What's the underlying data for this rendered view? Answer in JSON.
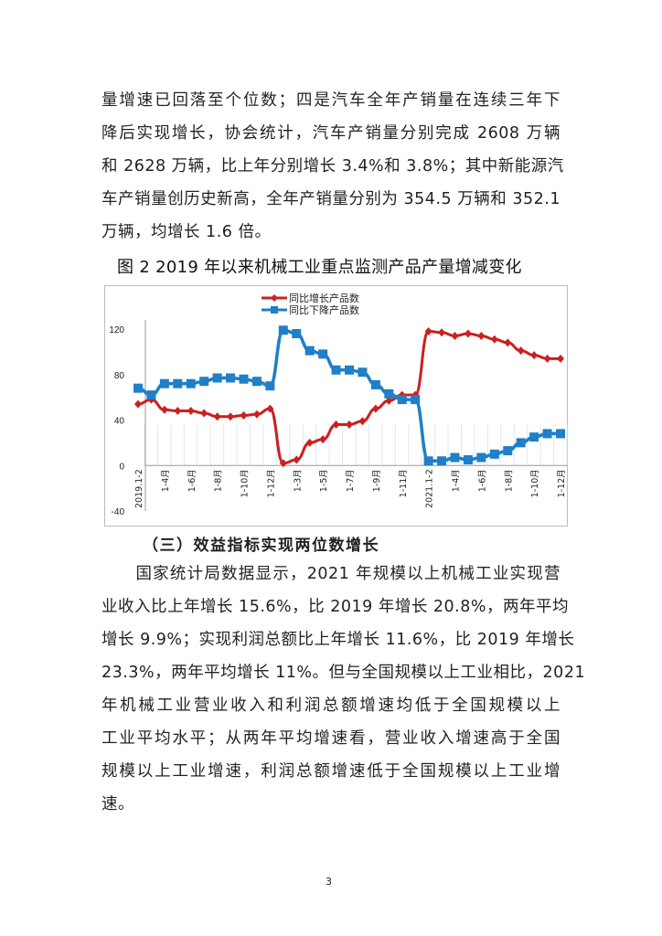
{
  "paragraph1": [
    "量增速已回落至个位数；四是汽车全年产销量在连续三年下",
    "降后实现增长，协会统计，汽车产销量分别完成 2608 万辆",
    "和 2628 万辆，比上年分别增长 3.4%和 3.8%；其中新能源汽",
    "车产销量创历史新高，全年产销量分别为 354.5 万辆和 352.1",
    "万辆，均增长 1.6 倍。"
  ],
  "figure_caption": "图 2   2019 年以来机械工业重点监测产品产量增减变化",
  "chart_data": {
    "type": "line",
    "title": "",
    "xlabel": "",
    "ylabel": "",
    "ylim": [
      -40,
      120
    ],
    "yticks": [
      "-40",
      "0",
      "40",
      "80",
      "120"
    ],
    "grid": false,
    "legend_position": "top-center",
    "x_labels": [
      "2019.1-2",
      "",
      "1-4月",
      "",
      "1-6月",
      "",
      "1-8月",
      "",
      "1-10月",
      "",
      "1-12月",
      "",
      "1-3月",
      "",
      "1-5月",
      "",
      "1-7月",
      "",
      "1-9月",
      "",
      "1-11月",
      "",
      "2021.1-2",
      "",
      "1-4月",
      "",
      "1-6月",
      "",
      "1-8月",
      "",
      "1-10月",
      "",
      "1-12月"
    ],
    "series": [
      {
        "name": "同比增长产品数",
        "color": "#cc1f1f",
        "marker": "diamond",
        "values": [
          54,
          58,
          49,
          48,
          48,
          46,
          43,
          43,
          44,
          45,
          50,
          2,
          5,
          20,
          23,
          36,
          36,
          39,
          50,
          57,
          62,
          62,
          118,
          117,
          114,
          116,
          114,
          111,
          108,
          101,
          97,
          94,
          94
        ]
      },
      {
        "name": "同比下降产品数",
        "color": "#1f7fc8",
        "marker": "square",
        "values": [
          68,
          62,
          72,
          72,
          72,
          74,
          77,
          77,
          76,
          74,
          70,
          119,
          116,
          101,
          98,
          84,
          84,
          82,
          71,
          63,
          58,
          58,
          4,
          4,
          7,
          5,
          7,
          10,
          13,
          20,
          25,
          28,
          28
        ]
      }
    ]
  },
  "section_heading": "（三）效益指标实现两位数增长",
  "paragraph2": [
    "　　国家统计局数据显示，2021 年规模以上机械工业实现营",
    "业收入比上年增长 15.6%，比 2019 年增长 20.8%，两年平均",
    "增长 9.9%；实现利润总额比上年增长 11.6%，比 2019 年增长",
    "23.3%，两年平均增长 11%。但与全国规模以上工业相比，2021",
    "年机械工业营业收入和利润总额增速均低于全国规模以上",
    "工业平均水平；从两年平均增速看，营业收入增速高于全国",
    "规模以上工业增速，利润总额增速低于全国规模以上工业增",
    "速。"
  ],
  "page_number": "3"
}
